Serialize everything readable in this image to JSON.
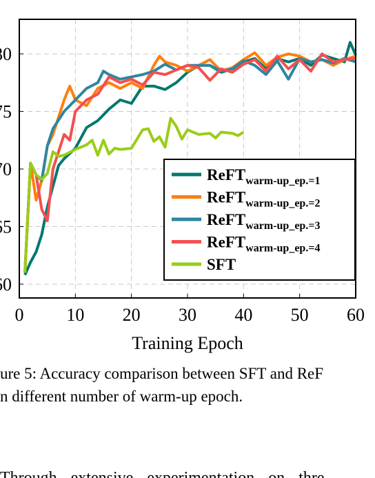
{
  "chart_data": {
    "type": "line",
    "xlabel": "Training Epoch",
    "xlim": [
      0,
      60
    ],
    "xticks": [
      0,
      10,
      20,
      30,
      40,
      50,
      60
    ],
    "ylim": [
      58.8,
      83
    ],
    "yticks": [
      60,
      65,
      70,
      75,
      80
    ],
    "grid": true,
    "legend": "lower right",
    "series": [
      {
        "name": "ReFT",
        "subscript": "warm-up_ep.=1",
        "color": "#00786e",
        "x": [
          1,
          2,
          3,
          4,
          5,
          6,
          7,
          8,
          10,
          12,
          14,
          16,
          18,
          20,
          22,
          24,
          26,
          28,
          30,
          32,
          34,
          36,
          38,
          40,
          42,
          44,
          46,
          48,
          50,
          52,
          54,
          56,
          58,
          59,
          60
        ],
        "values": [
          60.8,
          61.9,
          62.8,
          64.3,
          66.7,
          68.5,
          70.3,
          70.9,
          71.8,
          73.6,
          74.2,
          75.2,
          76,
          75.7,
          77.2,
          77.2,
          76.9,
          77.5,
          78.4,
          79,
          79,
          78.4,
          78.7,
          79.3,
          79.6,
          78.7,
          79.6,
          79.3,
          79.6,
          79,
          79.9,
          79.6,
          79.3,
          81,
          79.9
        ]
      },
      {
        "name": "ReFT",
        "subscript": "warm-up_ep.=2",
        "color": "#ff7f0e",
        "x": [
          1,
          2,
          3,
          4,
          5,
          6,
          8,
          9,
          10,
          12,
          14,
          16,
          18,
          20,
          22,
          24,
          25,
          26,
          28,
          30,
          32,
          34,
          36,
          38,
          40,
          42,
          44,
          46,
          48,
          50,
          52,
          54,
          56,
          58,
          60
        ],
        "values": [
          61,
          70.5,
          67.3,
          69,
          72,
          73,
          76,
          77.2,
          76,
          75.5,
          77,
          77.5,
          77,
          77.5,
          77,
          79,
          79.8,
          79.3,
          79,
          78.5,
          79,
          79.5,
          78.5,
          78.8,
          79.5,
          80.1,
          79,
          79.7,
          80,
          79.8,
          79.3,
          79.5,
          79,
          79.5,
          79.8
        ]
      },
      {
        "name": "ReFT",
        "subscript": "warm-up_ep.=3",
        "color": "#2e86a0",
        "x": [
          1,
          2,
          3,
          4,
          5,
          6,
          8,
          10,
          12,
          14,
          15,
          16,
          18,
          20,
          22,
          24,
          26,
          28,
          30,
          32,
          34,
          36,
          38,
          40,
          42,
          44,
          46,
          48,
          50,
          52,
          54,
          56,
          58,
          60
        ],
        "values": [
          61,
          70.5,
          69.5,
          69,
          72,
          73.5,
          75,
          76,
          77,
          77.5,
          78.5,
          78.2,
          77.8,
          78,
          78.2,
          78.5,
          79.1,
          78.6,
          79,
          79,
          79,
          78.5,
          78.7,
          79.4,
          79,
          78.2,
          79.4,
          77.8,
          79.6,
          79.3,
          79.5,
          79.2,
          79.6,
          79.3
        ]
      },
      {
        "name": "ReFT",
        "subscript": "warm-up_ep.=4",
        "color": "#f44f4f",
        "x": [
          1,
          2,
          3,
          4,
          5,
          6,
          7,
          8,
          9,
          10,
          12,
          14,
          16,
          18,
          20,
          22,
          24,
          26,
          28,
          30,
          32,
          34,
          36,
          38,
          40,
          42,
          44,
          46,
          48,
          50,
          52,
          54,
          56,
          58,
          60
        ],
        "values": [
          61,
          70.5,
          69.5,
          66.5,
          65.5,
          70,
          71.5,
          73,
          72.5,
          75,
          76,
          76.5,
          78,
          77.5,
          77.8,
          77.3,
          78.4,
          78.2,
          78.6,
          79,
          78.8,
          77.7,
          78.7,
          78.4,
          79.1,
          79.5,
          78.5,
          79.8,
          78.7,
          79.5,
          78.5,
          80,
          79.3,
          79.5,
          79.6
        ]
      },
      {
        "name": "SFT",
        "color": "#9acd18",
        "x": [
          1,
          2,
          3,
          4,
          5,
          6,
          7,
          8,
          10,
          12,
          13,
          14,
          15,
          16,
          17,
          18,
          20,
          22,
          23,
          24,
          25,
          26,
          27,
          28,
          29,
          30,
          32,
          34,
          35,
          36,
          38,
          39,
          40
        ],
        "values": [
          61,
          70.5,
          69.5,
          69.1,
          69.6,
          71.5,
          71.1,
          71.2,
          71.7,
          72.1,
          72.5,
          71.2,
          72.5,
          71.3,
          71.8,
          71.7,
          71.8,
          73.4,
          73.5,
          72.4,
          72.8,
          71.9,
          74.4,
          73.7,
          72.6,
          73.4,
          73,
          73.1,
          72.7,
          73.2,
          73.1,
          72.9,
          73.2
        ]
      }
    ]
  },
  "caption": [
    "ure 5: Accuracy comparison between SFT and ReF",
    "n different number of warm-up epoch."
  ],
  "body": "Through extensive experimentation on thre"
}
